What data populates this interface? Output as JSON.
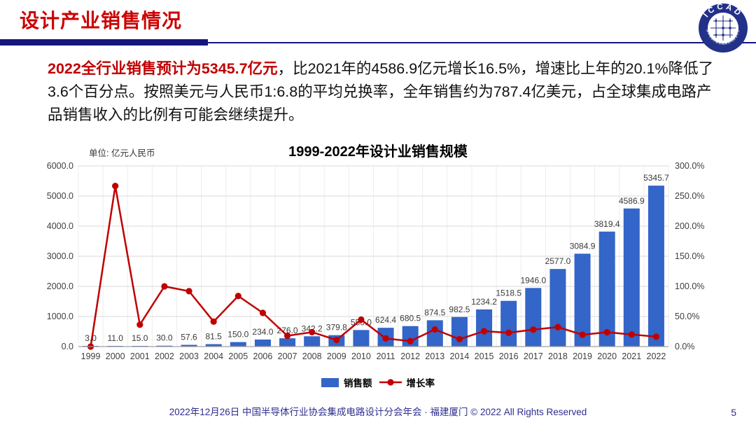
{
  "header": {
    "title": "设计产业销售情况"
  },
  "logo": {
    "top_text": "ICCAD",
    "bottom_text": "中国半导体行业协会集成电路设计分会"
  },
  "paragraph": {
    "highlight": "2022全行业销售预计为5345.7亿元",
    "rest": "，比2021年的4586.9亿元增长16.5%，增速比上年的20.1%降低了3.6个百分点。按照美元与人民币1:6.8的平均兑换率，全年销售约为787.4亿美元，占全球集成电路产品销售收入的比例有可能会继续提升。"
  },
  "chart": {
    "unit_label": "单位: 亿元人民币",
    "title": "1999-2022年设计业销售规模",
    "legend": {
      "bar": "销售额",
      "line": "增长率"
    }
  },
  "chart_data": {
    "type": "combo",
    "title": "1999-2022年设计业销售规模",
    "unit": "亿元人民币",
    "categories": [
      "1999",
      "2000",
      "2001",
      "2002",
      "2003",
      "2004",
      "2005",
      "2006",
      "2007",
      "2008",
      "2009",
      "2010",
      "2011",
      "2012",
      "2013",
      "2014",
      "2015",
      "2016",
      "2017",
      "2018",
      "2019",
      "2020",
      "2021",
      "2022"
    ],
    "series": [
      {
        "name": "销售额",
        "type": "bar",
        "axis": "left",
        "values": [
          3.0,
          11.0,
          15.0,
          30.0,
          57.6,
          81.5,
          150.0,
          234.0,
          276.0,
          342.2,
          379.8,
          550.0,
          624.4,
          680.5,
          874.5,
          982.5,
          1234.2,
          1518.5,
          1946.0,
          2577.0,
          3084.9,
          3819.4,
          4586.9,
          5345.7
        ]
      },
      {
        "name": "增长率",
        "type": "line",
        "axis": "right",
        "values": [
          0.0,
          266.7,
          36.4,
          100.0,
          92.0,
          41.5,
          84.0,
          56.0,
          17.9,
          24.0,
          11.0,
          44.8,
          13.5,
          9.0,
          28.5,
          12.3,
          25.6,
          23.0,
          28.2,
          32.4,
          19.7,
          23.8,
          20.1,
          16.5
        ]
      }
    ],
    "left_axis": {
      "min": 0,
      "max": 6000,
      "step": 1000,
      "format": "#.0"
    },
    "right_axis": {
      "min": 0,
      "max": 300,
      "step": 50,
      "format": "#.0%"
    },
    "grid": true,
    "legend_position": "bottom",
    "bar_labels_visible": true
  },
  "footer": {
    "text": "2022年12月26日 中国半导体行业协会集成电路设计分会年会 · 福建厦门 © 2022 All Rights Reserved",
    "page": "5"
  },
  "colors": {
    "bar": "#3465C8",
    "line": "#C00000",
    "title_red": "#CC0000",
    "navy": "#15157E",
    "grid": "#DADADA",
    "grid_vertical": "#EDEDED",
    "axis_line": "#A0A0A0",
    "tick_text": "#3F3F3F",
    "bar_label_text": "#3A3A3A"
  }
}
